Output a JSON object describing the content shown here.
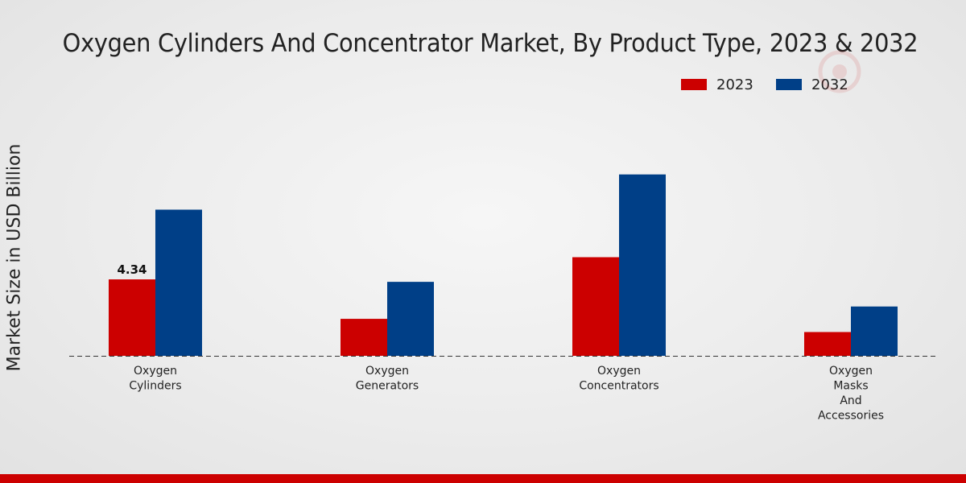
{
  "chart_data": {
    "type": "bar",
    "title": "Oxygen Cylinders And Concentrator Market, By Product Type, 2023 & 2032",
    "xlabel": "",
    "ylabel": "Market Size in USD Billion",
    "categories": [
      [
        "Oxygen",
        "Cylinders"
      ],
      [
        "Oxygen",
        "Generators"
      ],
      [
        "Oxygen",
        "Concentrators"
      ],
      [
        "Oxygen",
        "Masks",
        "And",
        "Accessories"
      ]
    ],
    "series": [
      {
        "name": "2023",
        "color": "#cc0000",
        "values": [
          4.34,
          2.1,
          5.6,
          1.35
        ]
      },
      {
        "name": "2032",
        "color": "#003f87",
        "values": [
          8.3,
          4.2,
          10.3,
          2.8
        ]
      }
    ],
    "data_labels": [
      {
        "series": 0,
        "index": 0,
        "text": "4.34"
      }
    ],
    "ylim": [
      0,
      16
    ],
    "grid": false,
    "legend": "top-right"
  },
  "colors": {
    "accent": "#cc0000",
    "series_2023": "#cc0000",
    "series_2032": "#003f87"
  }
}
